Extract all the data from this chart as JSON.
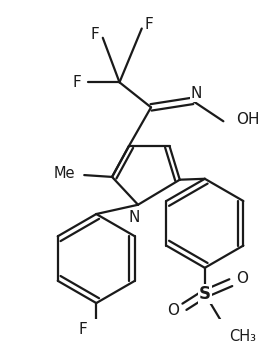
{
  "bg_color": "#ffffff",
  "line_color": "#1a1a1a",
  "line_width": 1.6,
  "figsize": [
    2.77,
    3.43
  ],
  "dpi": 100,
  "xlim": [
    0,
    277
  ],
  "ylim": [
    0,
    343
  ]
}
